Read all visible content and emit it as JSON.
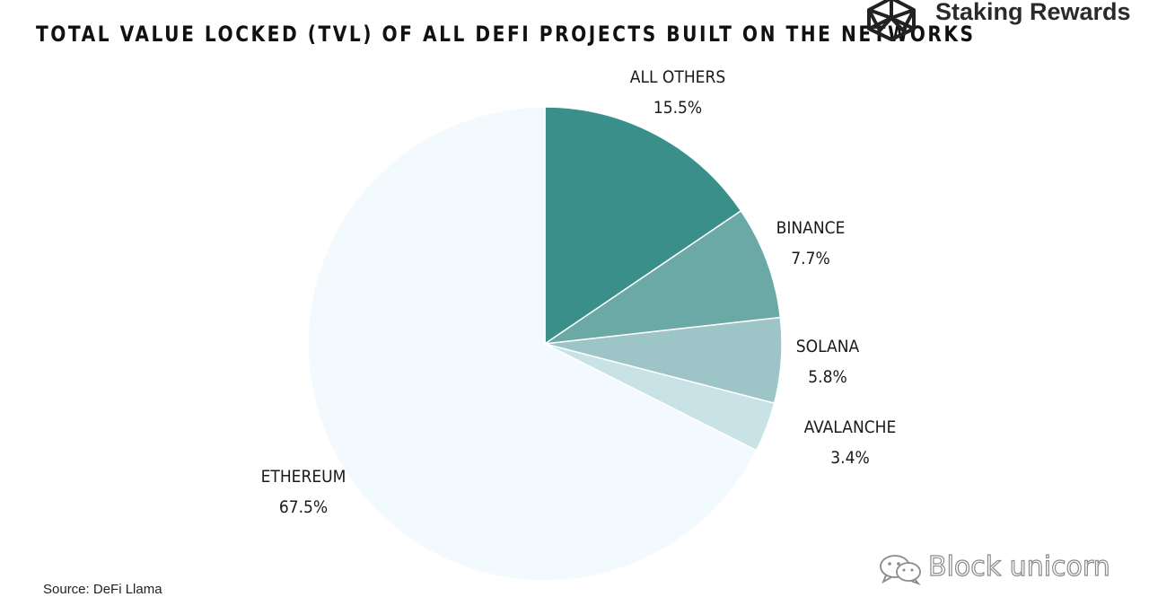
{
  "header": {
    "title": "TOTAL VALUE LOCKED (TVL) OF ALL DEFI PROJECTS BUILT ON THE NETWORKS",
    "brand_name": "Staking Rewards",
    "brand_icon": "icosahedron-logo-icon"
  },
  "footer": {
    "source": "Source: DeFi Llama",
    "watermark": "Block unicorn",
    "watermark_icon": "wechat-icon"
  },
  "chart_data": {
    "type": "pie",
    "start_angle_deg": 0,
    "direction": "clockwise",
    "slices": [
      {
        "label": "ALL OTHERS",
        "value": 15.5,
        "value_label": "15.5%",
        "color": "#3a8f8a"
      },
      {
        "label": "BINANCE",
        "value": 7.7,
        "value_label": "7.7%",
        "color": "#6aa9a6"
      },
      {
        "label": "SOLANA",
        "value": 5.8,
        "value_label": "5.8%",
        "color": "#9dc4c6"
      },
      {
        "label": "AVALANCHE",
        "value": 3.4,
        "value_label": "3.4%",
        "color": "#c8e2e6"
      },
      {
        "label": "ETHEREUM",
        "value": 67.5,
        "value_label": "67.5%",
        "color": "#f3fafd"
      }
    ]
  }
}
